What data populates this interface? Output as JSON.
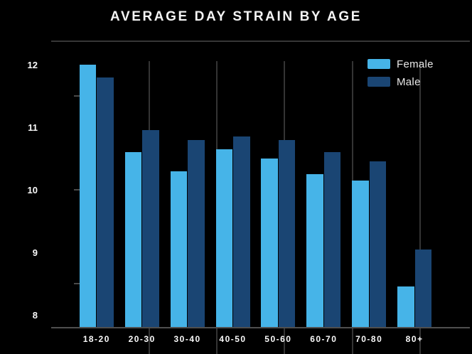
{
  "title": "AVERAGE DAY STRAIN BY AGE",
  "legend": {
    "position": "top-right",
    "items": [
      {
        "label": "Female",
        "color": "#46B4E8"
      },
      {
        "label": "Male",
        "color": "#1A4573"
      }
    ]
  },
  "colors": {
    "background": "#000000",
    "title_text": "#F4F4F4",
    "axis_text": "#FAFAFA",
    "gridline": "#343434",
    "axis_line": "#4F4F4F",
    "female": "#46B4E8",
    "male": "#1A4573"
  },
  "chart_data": {
    "type": "bar",
    "title": "AVERAGE DAY STRAIN BY AGE",
    "xlabel": "",
    "ylabel": "",
    "categories": [
      "18-20",
      "20-30",
      "30-40",
      "40-50",
      "50-60",
      "60-70",
      "70-80",
      "80+"
    ],
    "series": [
      {
        "name": "Female",
        "color": "#46B4E8",
        "values": [
          12.0,
          10.6,
          10.3,
          10.65,
          10.5,
          10.25,
          10.15,
          8.45
        ]
      },
      {
        "name": "Male",
        "color": "#1A4573",
        "values": [
          11.8,
          10.95,
          10.8,
          10.85,
          10.8,
          10.6,
          10.45,
          9.05
        ]
      }
    ],
    "y_tick_labels": [
      8,
      9,
      10,
      11,
      12
    ],
    "y_minor_ticks": [
      8.5,
      10,
      11.5
    ],
    "ylim": [
      7.8,
      12.25
    ],
    "grid": "vertical-only",
    "legend_position": "top-right",
    "background": "#000000"
  }
}
